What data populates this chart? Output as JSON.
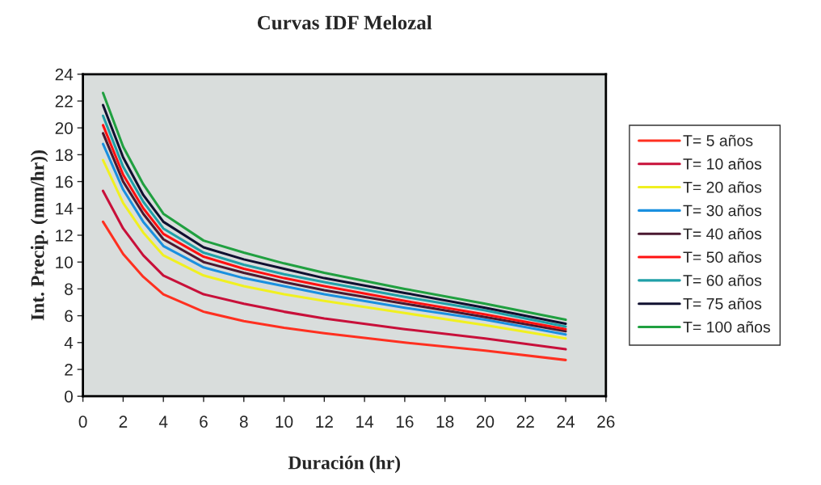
{
  "chart_data": {
    "type": "line",
    "title": "Curvas IDF Melozal",
    "xlabel": "Duración (hr)",
    "ylabel": "Int. Precip. (mm/hr))",
    "x": [
      1,
      2,
      3,
      4,
      6,
      8,
      10,
      12,
      16,
      20,
      24
    ],
    "series": [
      {
        "name": "T= 5 años",
        "color": "#ff3020",
        "values": [
          13.0,
          10.6,
          8.9,
          7.6,
          6.3,
          5.6,
          5.1,
          4.7,
          4.0,
          3.4,
          2.7
        ]
      },
      {
        "name": "T= 10 años",
        "color": "#c8103a",
        "values": [
          15.3,
          12.5,
          10.5,
          9.0,
          7.6,
          6.9,
          6.3,
          5.8,
          5.0,
          4.3,
          3.5
        ]
      },
      {
        "name": "T= 20 años",
        "color": "#f0f020",
        "values": [
          17.6,
          14.4,
          12.2,
          10.5,
          9.0,
          8.2,
          7.6,
          7.1,
          6.2,
          5.3,
          4.3
        ]
      },
      {
        "name": "T= 30 años",
        "color": "#1a90e0",
        "values": [
          18.8,
          15.4,
          13.0,
          11.2,
          9.6,
          8.8,
          8.2,
          7.6,
          6.6,
          5.7,
          4.6
        ]
      },
      {
        "name": "T= 40 años",
        "color": "#4a1830",
        "values": [
          19.6,
          16.0,
          13.6,
          11.7,
          10.0,
          9.2,
          8.5,
          7.9,
          6.9,
          5.9,
          4.85
        ]
      },
      {
        "name": "T= 50 años",
        "color": "#ff1010",
        "values": [
          20.2,
          16.5,
          14.0,
          12.1,
          10.4,
          9.5,
          8.8,
          8.2,
          7.1,
          6.1,
          5.0
        ]
      },
      {
        "name": "T= 60 años",
        "color": "#20a0a8",
        "values": [
          20.9,
          17.1,
          14.5,
          12.5,
          10.7,
          9.8,
          9.1,
          8.5,
          7.4,
          6.4,
          5.2
        ]
      },
      {
        "name": "T= 75 años",
        "color": "#101030",
        "values": [
          21.7,
          17.8,
          15.0,
          13.0,
          11.1,
          10.2,
          9.5,
          8.8,
          7.7,
          6.6,
          5.4
        ]
      },
      {
        "name": "T= 100 años",
        "color": "#20a040",
        "values": [
          22.6,
          18.6,
          15.8,
          13.6,
          11.6,
          10.7,
          9.9,
          9.2,
          8.0,
          6.9,
          5.7
        ]
      }
    ],
    "xlim": [
      0,
      26
    ],
    "xticks": [
      0,
      2,
      4,
      6,
      8,
      10,
      12,
      14,
      16,
      18,
      20,
      22,
      24,
      26
    ],
    "ylim": [
      0,
      24
    ],
    "yticks": [
      0,
      2,
      4,
      6,
      8,
      10,
      12,
      14,
      16,
      18,
      20,
      22,
      24
    ],
    "grid": false,
    "legend": "right",
    "marker": "none",
    "line_style": "solid"
  }
}
